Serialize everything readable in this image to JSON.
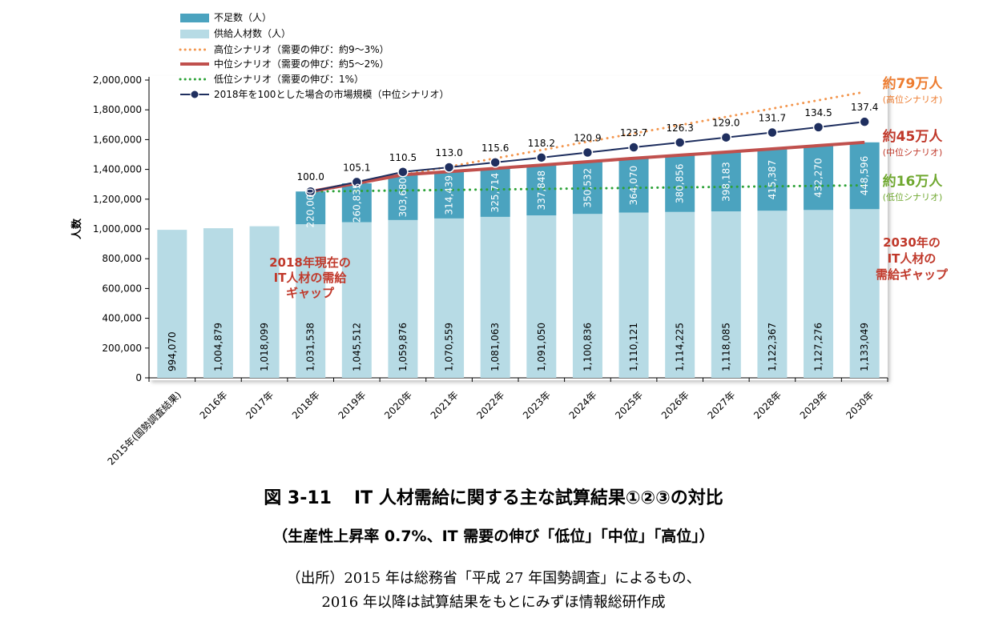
{
  "figure": {
    "number": "図 3-11",
    "title": "IT 人材需給に関する主な試算結果①②③の対比",
    "subtitle": "（生産性上昇率 0.7%、IT 需要の伸び「低位」「中位」「高位」）",
    "source_line1": "（出所）2015 年は総務省「平成 27 年国勢調査」によるもの、",
    "source_line2": "2016 年以降は試算結果をもとにみずほ情報総研作成"
  },
  "chart_data": {
    "type": "bar",
    "stacked": true,
    "categories": [
      "2015年(国勢調査結果)",
      "2016年",
      "2017年",
      "2018年",
      "2019年",
      "2020年",
      "2021年",
      "2022年",
      "2023年",
      "2024年",
      "2025年",
      "2026年",
      "2027年",
      "2028年",
      "2029年",
      "2030年"
    ],
    "ylabel": "人数",
    "ylim": [
      0,
      2000000
    ],
    "yticks": [
      0,
      200000,
      400000,
      600000,
      800000,
      1000000,
      1200000,
      1400000,
      1600000,
      1800000,
      2000000
    ],
    "ytick_labels": [
      "0",
      "200,000",
      "400,000",
      "600,000",
      "800,000",
      "1,000,000",
      "1,200,000",
      "1,400,000",
      "1,600,000",
      "1,800,000",
      "2,000,000"
    ],
    "grid": false,
    "legend_position": "top-left",
    "series": [
      {
        "name": "供給人材数（人）",
        "kind": "bar",
        "color": "#b7dbe5",
        "values": [
          994070,
          1004879,
          1018099,
          1031538,
          1045512,
          1059876,
          1070559,
          1081063,
          1091050,
          1100836,
          1110121,
          1114225,
          1118085,
          1122367,
          1127276,
          1133049
        ],
        "labels": [
          "994,070",
          "1,004,879",
          "1,018,099",
          "1,031,538",
          "1,045,512",
          "1,059,876",
          "1,070,559",
          "1,081,063",
          "1,091,050",
          "1,100,836",
          "1,110,121",
          "1,114,225",
          "1,118,085",
          "1,122,367",
          "1,127,276",
          "1,133,049"
        ]
      },
      {
        "name": "不足数（人）",
        "kind": "bar",
        "color": "#4ba3bf",
        "values": [
          null,
          null,
          null,
          220000,
          260835,
          303680,
          314439,
          325714,
          337848,
          350532,
          364070,
          380856,
          398183,
          415387,
          432270,
          448596
        ],
        "labels": [
          "",
          "",
          "",
          "220,000",
          "260,835",
          "303,680",
          "314,439",
          "325,714",
          "337,848",
          "350,532",
          "364,070",
          "380,856",
          "398,183",
          "415,387",
          "432,270",
          "448,596"
        ]
      },
      {
        "name": "高位シナリオ（需要の伸び：約9～3%）",
        "kind": "line",
        "style": "dotted",
        "color": "#f3964e",
        "values": [
          null,
          null,
          null,
          1251538,
          null,
          null,
          null,
          null,
          null,
          null,
          null,
          null,
          null,
          null,
          null,
          1920000
        ]
      },
      {
        "name": "中位シナリオ（需要の伸び：約5～2%）",
        "kind": "line",
        "style": "solid",
        "color": "#c0504d",
        "values": [
          null,
          null,
          null,
          1251538,
          1306347,
          1363556,
          1384998,
          1406777,
          1428898,
          1451368,
          1474191,
          1495081,
          1516268,
          1537754,
          1559546,
          1581645
        ]
      },
      {
        "name": "低位シナリオ（需要の伸び：1%）",
        "kind": "line",
        "style": "dotted",
        "color": "#2da238",
        "values": [
          null,
          null,
          null,
          1251538,
          null,
          null,
          null,
          null,
          null,
          null,
          null,
          null,
          null,
          null,
          null,
          1293000
        ]
      },
      {
        "name": "2018年を100とした場合の市場規模（中位シナリオ）",
        "kind": "line",
        "style": "solid-marker",
        "color": "#1f2f5f",
        "values": [
          null,
          null,
          null,
          1251538,
          1315400,
          1383000,
          1414200,
          1446800,
          1479400,
          1513200,
          1548200,
          1580700,
          1614500,
          1647600,
          1683400,
          1719500
        ],
        "labels": [
          "",
          "",
          "",
          "100.0",
          "105.1",
          "110.5",
          "113.0",
          "115.6",
          "118.2",
          "120.9",
          "123.7",
          "126.3",
          "129.0",
          "131.7",
          "134.5",
          "137.4"
        ]
      }
    ],
    "annotations": [
      {
        "lines": [
          "約79万人"
        ],
        "note": "(高位シナリオ)",
        "color": "#ed7d31"
      },
      {
        "lines": [
          "約45万人"
        ],
        "note": "(中位シナリオ)",
        "color": "#c0392b"
      },
      {
        "lines": [
          "約16万人"
        ],
        "note": "(低位シナリオ)",
        "color": "#70a830"
      },
      {
        "lines": [
          "2030年の",
          "IT人材の",
          "需給ギャップ"
        ],
        "color": "#c0392b"
      },
      {
        "lines": [
          "2018年現在の",
          "IT人材の需給",
          "ギャップ"
        ],
        "color": "#c0392b"
      }
    ]
  }
}
